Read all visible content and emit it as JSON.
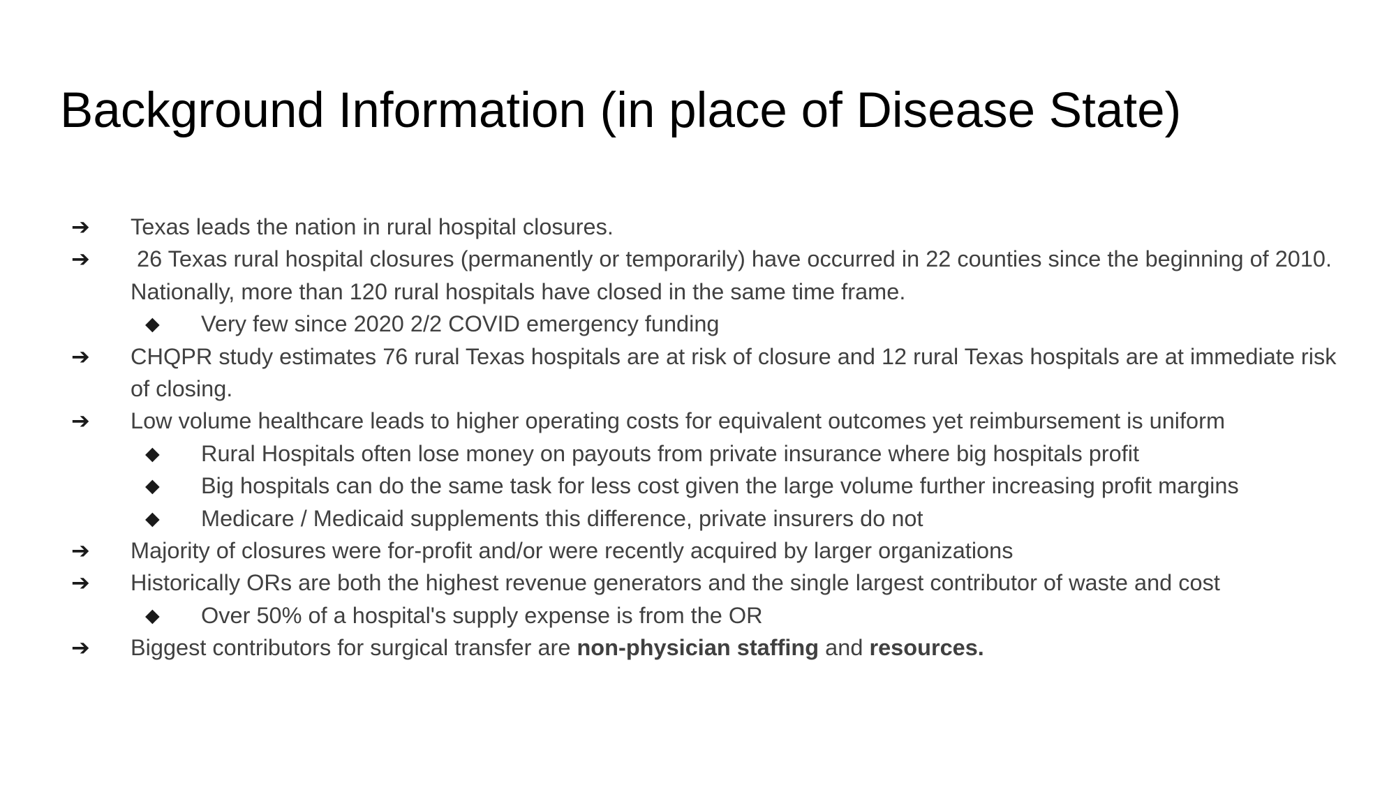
{
  "slide": {
    "title": "Background Information (in place of Disease State)",
    "bullets": [
      {
        "level": 1,
        "marker": "➔",
        "text": "Texas leads the nation in rural hospital closures."
      },
      {
        "level": 1,
        "marker": "➔",
        "text": " 26 Texas rural hospital closures (permanently or temporarily) have occurred in 22 counties since the beginning of 2010.  Nationally, more than 120 rural hospitals have closed in the same time frame."
      },
      {
        "level": 2,
        "marker": "◆",
        "text": "Very few since 2020 2/2 COVID emergency funding"
      },
      {
        "level": 1,
        "marker": "➔",
        "text": "CHQPR study estimates 76 rural Texas hospitals are at risk of closure and 12 rural Texas hospitals are at immediate risk of closing."
      },
      {
        "level": 1,
        "marker": "➔",
        "text": "Low volume healthcare leads to higher operating costs for equivalent outcomes yet reimbursement is uniform"
      },
      {
        "level": 2,
        "marker": "◆",
        "text": "Rural Hospitals often lose money on payouts from private insurance where big hospitals profit"
      },
      {
        "level": 2,
        "marker": "◆",
        "text": "Big hospitals can do the same task for less cost given the large volume further increasing profit margins"
      },
      {
        "level": 2,
        "marker": "◆",
        "text": "Medicare / Medicaid supplements this difference, private insurers do not"
      },
      {
        "level": 1,
        "marker": "➔",
        "text": "Majority of closures were for-profit and/or were recently acquired by larger organizations"
      },
      {
        "level": 1,
        "marker": "➔",
        "text": "Historically ORs are both the highest revenue generators and the single largest contributor of waste and cost"
      },
      {
        "level": 2,
        "marker": "◆",
        "text": "Over 50% of a hospital's supply expense is from the OR"
      },
      {
        "level": 1,
        "marker": "➔",
        "text_parts": [
          "Biggest contributors for surgical transfer are ",
          "non-physician staffing",
          " and ",
          "resources."
        ]
      }
    ]
  },
  "icons": {
    "level1_bullet": "arrow-right-icon",
    "level2_bullet": "diamond-icon"
  },
  "colors": {
    "background": "#ffffff",
    "title": "#000000",
    "body_text": "#404040"
  }
}
